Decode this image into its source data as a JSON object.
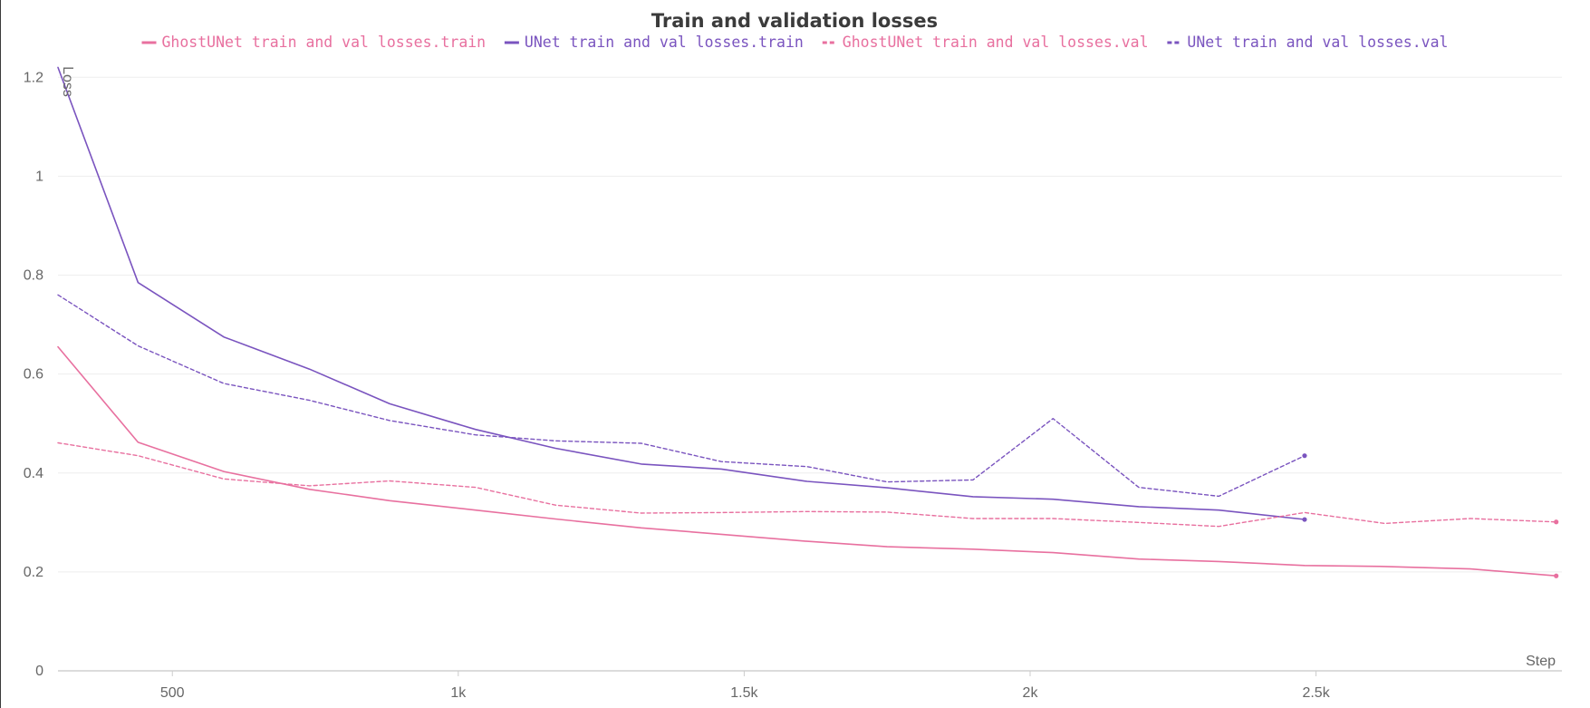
{
  "chart_data": {
    "type": "line",
    "title": "Train and validation losses",
    "xlabel": "Step",
    "ylabel": "Loss",
    "xlim": [
      300,
      2930
    ],
    "ylim": [
      0,
      1.25
    ],
    "x_ticks": [
      500,
      1000,
      1500,
      2000,
      2500
    ],
    "x_tick_labels": [
      "500",
      "1k",
      "1.5k",
      "2k",
      "2.5k"
    ],
    "y_ticks": [
      0,
      0.2,
      0.4,
      0.6,
      0.8,
      1,
      1.2
    ],
    "y_tick_labels": [
      "0",
      "0.2",
      "0.4",
      "0.6",
      "0.8",
      "1",
      "1.2"
    ],
    "grid": true,
    "legend": "top-center",
    "series": [
      {
        "name": "GhostUNet train and val losses.train",
        "color": "#e8709f",
        "style": "solid",
        "x": [
          300,
          440,
          590,
          740,
          880,
          1030,
          1170,
          1320,
          1460,
          1610,
          1750,
          1900,
          2040,
          2190,
          2330,
          2480,
          2620,
          2770,
          2920
        ],
        "values": [
          0.655,
          0.462,
          0.403,
          0.367,
          0.344,
          0.325,
          0.307,
          0.289,
          0.276,
          0.262,
          0.251,
          0.246,
          0.239,
          0.226,
          0.221,
          0.213,
          0.211,
          0.206,
          0.192
        ]
      },
      {
        "name": "UNet train and val losses.train",
        "color": "#7a54bf",
        "style": "solid",
        "x": [
          300,
          440,
          590,
          740,
          880,
          1030,
          1170,
          1320,
          1460,
          1610,
          1750,
          1900,
          2040,
          2190,
          2330,
          2480
        ],
        "values": [
          1.22,
          0.785,
          0.675,
          0.61,
          0.54,
          0.488,
          0.45,
          0.418,
          0.408,
          0.383,
          0.37,
          0.352,
          0.347,
          0.332,
          0.325,
          0.306
        ]
      },
      {
        "name": "GhostUNet train and val losses.val",
        "color": "#e8709f",
        "style": "dashed",
        "x": [
          300,
          440,
          590,
          740,
          880,
          1030,
          1170,
          1320,
          1460,
          1610,
          1750,
          1900,
          2040,
          2190,
          2330,
          2480,
          2620,
          2770,
          2920
        ],
        "values": [
          0.461,
          0.435,
          0.388,
          0.374,
          0.384,
          0.371,
          0.335,
          0.319,
          0.32,
          0.322,
          0.321,
          0.308,
          0.308,
          0.3,
          0.292,
          0.32,
          0.298,
          0.308,
          0.301
        ]
      },
      {
        "name": "UNet train and val losses.val",
        "color": "#7a54bf",
        "style": "dashed",
        "x": [
          300,
          440,
          590,
          740,
          880,
          1030,
          1170,
          1320,
          1460,
          1610,
          1750,
          1900,
          2040,
          2190,
          2330,
          2480
        ],
        "values": [
          0.76,
          0.657,
          0.581,
          0.547,
          0.506,
          0.477,
          0.465,
          0.46,
          0.423,
          0.413,
          0.382,
          0.386,
          0.51,
          0.371,
          0.353,
          0.435
        ]
      }
    ]
  }
}
